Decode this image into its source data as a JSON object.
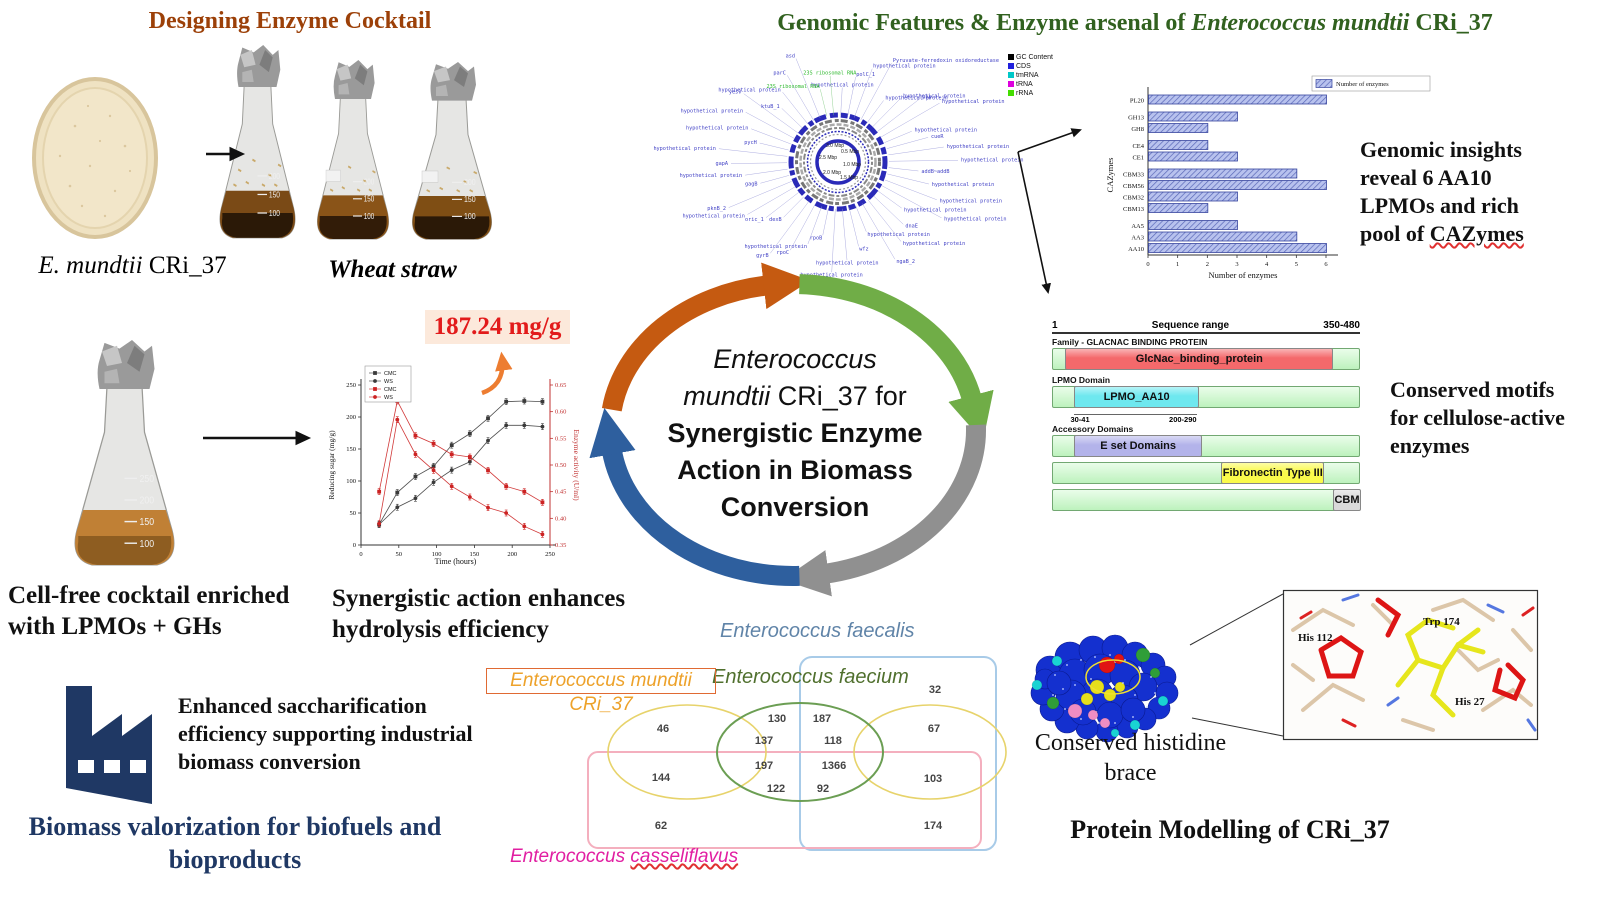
{
  "design": {
    "title": "Designing Enzyme Cocktail",
    "petri_italic": "E. mundtii",
    "petri_rest": " CRi_37",
    "wheat": "Wheat straw",
    "flask_graduations": [
      "200",
      "150",
      "100"
    ]
  },
  "genomic": {
    "title_prefix": "Genomic Features & Enzyme arsenal of ",
    "title_italic": "Enterococcus mundtii",
    "title_suffix": " CRi_37",
    "insight_prefix": "Genomic insights reveal 6 AA10 LPMOs and rich pool of ",
    "insight_underlined": "CAZymes"
  },
  "genome": {
    "legend": [
      {
        "label": "GC Content",
        "color": "#000000"
      },
      {
        "label": "CDS",
        "color": "#2020dd"
      },
      {
        "label": "tmRNA",
        "color": "#00c8c8"
      },
      {
        "label": "tRNA",
        "color": "#dd00dd"
      },
      {
        "label": "rRNA",
        "color": "#44dd00"
      }
    ],
    "mbp": [
      "3.0 Mbp",
      "0.5 Mbp",
      "2.5 Mbp",
      "1.0 Mbp",
      "2.0 Mbp",
      "1.5 Mbp"
    ],
    "green_from": 44,
    "genes": [
      "hypothetical protein",
      "polC_1",
      "hypothetical protein",
      "Pyruvate-ferredoxin oxidoreductase",
      "hypothetical protein",
      "hypothetical protein",
      "php",
      "hypothetical protein",
      "hypothetical protein",
      "cueR",
      "hypothetical protein",
      "hypothetical protein",
      "addB~addB",
      "hypothetical protein",
      "hypothetical protein",
      "hypothetical protein",
      "hypothetical protein",
      "dnaE",
      "hypothetical protein",
      "ngaB_2",
      "hypothetical protein",
      "wfz",
      "hypothetical protein",
      "hypothetical protein",
      "rpoB",
      "hypothetical protein",
      "rpoC",
      "gyrB",
      "dexB",
      "oric_1",
      "hypothetical protein",
      "pknB_2",
      "gagB",
      "hypothetical protein",
      "gapA",
      "hypothetical protein",
      "pycH",
      "hypothetical protein",
      "hypothetical protein",
      "yesV",
      "ktuB_1",
      "hypothetical protein",
      "parC",
      "asd",
      "23S ribosomal RNA",
      "23S ribosomal RNA"
    ]
  },
  "chart_data": [
    {
      "type": "bar",
      "orientation": "horizontal",
      "categories": [
        "PL20",
        "GH13",
        "GH8",
        "CE4",
        "CE1",
        "CBM33",
        "CBM56",
        "CBM32",
        "CBM13",
        "AA5",
        "AA3",
        "AA10"
      ],
      "values": [
        6,
        3,
        2,
        2,
        3,
        5,
        6,
        3,
        2,
        3,
        5,
        6
      ],
      "group_breaks": [
        1,
        3,
        5,
        9
      ],
      "xlabel": "Number of enzymes",
      "ylabel": "CAZymes",
      "xlim": [
        0,
        6
      ],
      "xticks": [
        0,
        1,
        2,
        3,
        4,
        5,
        6
      ],
      "legend": [
        "Number of enzymes"
      ],
      "bar_fill": "#b8c2ee",
      "bar_hatch": "#5a68b8",
      "bar_edge": "#37459e"
    },
    {
      "type": "line",
      "x": [
        24,
        48,
        72,
        96,
        120,
        144,
        168,
        192,
        216,
        240
      ],
      "series": [
        {
          "name": "CMC",
          "axis": "left",
          "color": "#3a3a3a",
          "marker": "square",
          "values": [
            32,
            82,
            107,
            123,
            156,
            174,
            198,
            224,
            225,
            224
          ]
        },
        {
          "name": "WS",
          "axis": "left",
          "color": "#3a3a3a",
          "marker": "circle",
          "values": [
            32,
            59,
            73,
            98,
            117,
            130,
            163,
            187,
            187,
            185
          ]
        },
        {
          "name": "CMC",
          "axis": "right",
          "color": "#cc2222",
          "marker": "square",
          "values": [
            0.45,
            0.62,
            0.555,
            0.54,
            0.52,
            0.515,
            0.49,
            0.46,
            0.45,
            0.43
          ]
        },
        {
          "name": "WS",
          "axis": "right",
          "color": "#cc2222",
          "marker": "circle",
          "values": [
            0.39,
            0.585,
            0.52,
            0.49,
            0.46,
            0.44,
            0.42,
            0.41,
            0.385,
            0.37
          ]
        }
      ],
      "xlabel": "Time (hours)",
      "ylabel_left": "Reducing sugar (mg/g)",
      "ylabel_right": "Enzyme activity (U/ml)",
      "xlim": [
        0,
        250
      ],
      "ylim_left": [
        0,
        250
      ],
      "ylim_right": [
        0.35,
        0.65
      ],
      "xticks": [
        0,
        50,
        100,
        150,
        200,
        250
      ],
      "yticks_left": [
        0,
        50,
        100,
        150,
        200,
        250
      ],
      "yticks_right": [
        0.35,
        0.4,
        0.45,
        0.5,
        0.55,
        0.6,
        0.65
      ]
    }
  ],
  "synergy": {
    "yield": "187.24 mg/g",
    "caption": "Synergistic action enhances hydrolysis efficiency"
  },
  "cocktail": {
    "caption": "Cell-free cocktail enriched with LPMOs + GHs",
    "graduations": [
      "250",
      "200",
      "150",
      "100"
    ]
  },
  "industry": {
    "enhanced": "Enhanced saccharification efficiency supporting industrial biomass conversion",
    "valorization": "Biomass valorization for biofuels and bioproducts"
  },
  "center": {
    "line1": "Enterococcus",
    "line2a": "mundtii",
    "line2b": " CRi_37 for",
    "line3": "Synergistic Enzyme",
    "line4": "Action in Biomass",
    "line5": "Conversion"
  },
  "domains": {
    "header": {
      "left": "1",
      "center": "Sequence range",
      "right": "350-480"
    },
    "rows": [
      {
        "section": "Family - GLACNAC BINDING PROTEIN",
        "label": "GlcNac_binding_protein",
        "color": "#f4696b",
        "start": 0.04,
        "end": 0.91
      },
      {
        "section": "LPMO Domain",
        "label": "LPMO_AA10",
        "color": "#6ee8ef",
        "start": 0.07,
        "end": 0.47,
        "range_left": "30-41",
        "range_right": "200-290"
      },
      {
        "section": "Accessory Domains",
        "label": "E set Domains",
        "color": "#b3b3ea",
        "start": 0.07,
        "end": 0.48
      },
      {
        "section": "",
        "label": "Fibronectin Type III",
        "color": "#fafa4b",
        "start": 0.55,
        "end": 0.88
      },
      {
        "section": "",
        "label": "CBM",
        "color": "#d9d9d9",
        "start": 0.915,
        "end": 1.0
      }
    ],
    "caption": "Conserved motifs for cellulose-active enzymes"
  },
  "venn": {
    "faecalis": "Enterococcus faecalis",
    "faecium": "Enterococcus faecium",
    "mundtii": "Enterococcus mundtii CRi_37",
    "cassel_prefix": "Enterococcus ",
    "cassel_species": "casseliflavus",
    "counts": [
      "32",
      "46",
      "130",
      "187",
      "67",
      "137",
      "118",
      "197",
      "1366",
      "144",
      "103",
      "122",
      "92",
      "62",
      "174"
    ]
  },
  "protein": {
    "caption": "Conserved histidine brace",
    "title": "Protein Modelling of CRi_37",
    "residues": [
      "His 112",
      "Trp 174",
      "His 27"
    ]
  }
}
